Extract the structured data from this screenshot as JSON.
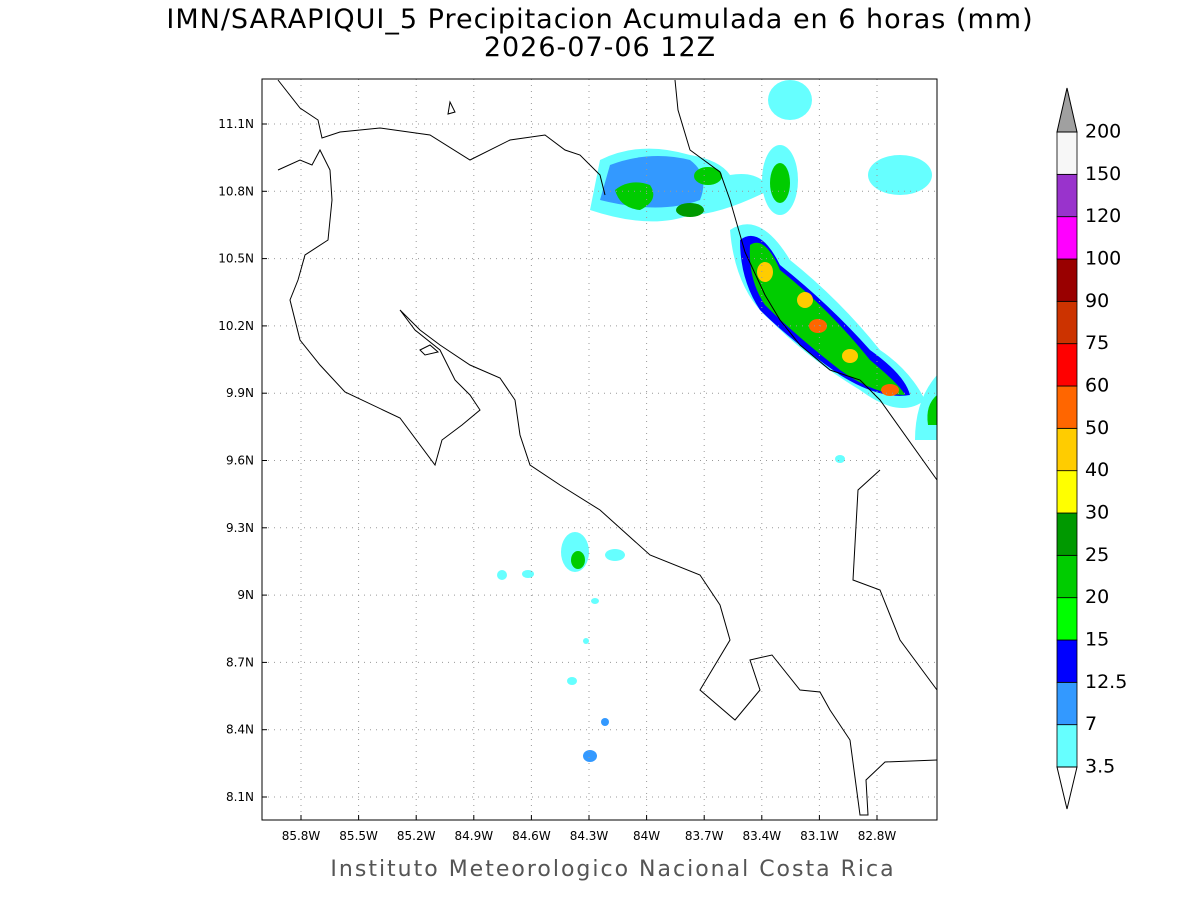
{
  "header": {
    "title": "IMN/SARAPIQUI_5 Precipitacion Acumulada en 6 horas (mm)",
    "subtitle": "2026-07-06 12Z"
  },
  "map": {
    "lon_labels": [
      "85.8W",
      "85.5W",
      "85.2W",
      "84.9W",
      "84.6W",
      "84.3W",
      "84W",
      "83.7W",
      "83.4W",
      "83.1W",
      "82.8W"
    ],
    "lat_labels": [
      "11.1N",
      "10.8N",
      "10.5N",
      "10.2N",
      "9.9N",
      "9.6N",
      "9.3N",
      "9N",
      "8.7N",
      "8.4N",
      "8.1N"
    ]
  },
  "colorbar": {
    "levels": [
      3.5,
      7,
      12.5,
      15,
      20,
      25,
      30,
      40,
      50,
      60,
      75,
      90,
      100,
      120,
      150,
      200
    ],
    "colors": [
      "#66ffff",
      "#3399ff",
      "#0000ff",
      "#00ff00",
      "#00cc00",
      "#009900",
      "#ffff00",
      "#ffcc00",
      "#ff6600",
      "#ff0000",
      "#cc3300",
      "#990000",
      "#ff00ff",
      "#9933cc",
      "#f7f7f7"
    ],
    "under_color": "#ffffff",
    "over_color": "#a0a0a0"
  },
  "footer": {
    "text": "Instituto Meteorologico Nacional Costa Rica"
  }
}
